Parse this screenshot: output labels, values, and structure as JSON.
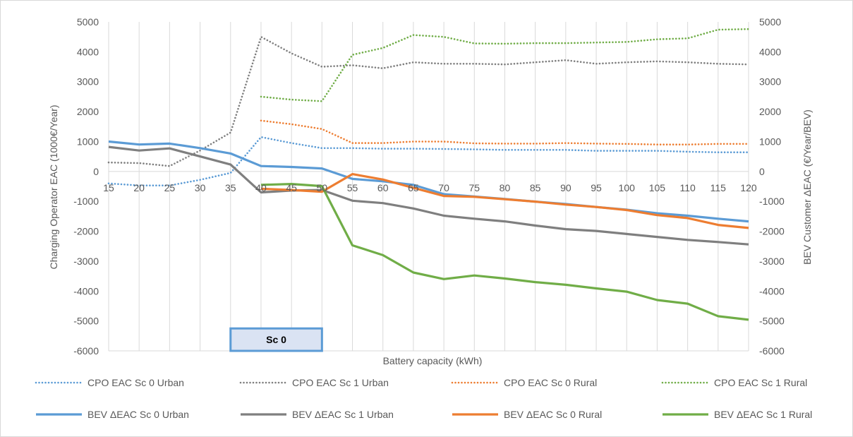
{
  "chart_data": {
    "type": "line",
    "xlabel": "Battery capacity (kWh)",
    "ylabel_left": "Charging Operator EAC (1000€/Year)",
    "ylabel_right": "BEV Customer ΔEAC (€/Year/BEV)",
    "xlim": [
      15,
      120
    ],
    "ylim_left": [
      -6000,
      5000
    ],
    "ylim_right": [
      -6000,
      5000
    ],
    "grid": "vertical",
    "legend_position": "bottom",
    "x": [
      15,
      20,
      25,
      30,
      35,
      40,
      45,
      50,
      55,
      60,
      65,
      70,
      75,
      80,
      85,
      90,
      95,
      100,
      105,
      110,
      115,
      120
    ],
    "x_tick_labels": [
      "15",
      "20",
      "25",
      "30",
      "35",
      "40",
      "45",
      "50",
      "55",
      "60",
      "65",
      "70",
      "75",
      "80",
      "85",
      "90",
      "95",
      "100",
      "105",
      "110",
      "115",
      "120"
    ],
    "y_tick_labels": [
      "5000",
      "4000",
      "3000",
      "2000",
      "1000",
      "0",
      "-1000",
      "-2000",
      "-3000",
      "-4000",
      "-5000",
      "-6000"
    ],
    "y_tick_values": [
      5000,
      4000,
      3000,
      2000,
      1000,
      0,
      -1000,
      -2000,
      -3000,
      -4000,
      -5000,
      -6000
    ],
    "series": [
      {
        "name": "CPO EAC Sc 0 Urban",
        "axis": "left",
        "style": "dotted",
        "color": "#5b9bd5",
        "values": [
          -400,
          -470,
          -470,
          -280,
          -50,
          1150,
          950,
          780,
          780,
          760,
          760,
          750,
          740,
          720,
          720,
          720,
          690,
          690,
          690,
          660,
          640,
          640
        ]
      },
      {
        "name": "CPO EAC Sc 1 Urban",
        "axis": "left",
        "style": "dotted",
        "color": "#7f7f7f",
        "values": [
          300,
          280,
          180,
          700,
          1300,
          4500,
          3950,
          3500,
          3550,
          3450,
          3650,
          3600,
          3600,
          3580,
          3650,
          3720,
          3600,
          3650,
          3680,
          3650,
          3600,
          3580
        ]
      },
      {
        "name": "CPO EAC Sc 0 Rural",
        "axis": "left",
        "style": "dotted",
        "color": "#ed7d31",
        "values": [
          null,
          null,
          null,
          null,
          null,
          1700,
          1580,
          1420,
          950,
          950,
          1000,
          1000,
          940,
          930,
          930,
          950,
          930,
          920,
          900,
          900,
          920,
          920
        ]
      },
      {
        "name": "CPO EAC Sc 1 Rural",
        "axis": "left",
        "style": "dotted",
        "color": "#70ad47",
        "values": [
          null,
          null,
          null,
          null,
          null,
          2500,
          2400,
          2350,
          3900,
          4130,
          4560,
          4500,
          4280,
          4270,
          4290,
          4290,
          4310,
          4330,
          4420,
          4450,
          4740,
          4760
        ]
      },
      {
        "name": "BEV ΔEAC Sc 0 Urban",
        "axis": "right",
        "style": "solid",
        "color": "#5b9bd5",
        "values": [
          1000,
          900,
          930,
          780,
          600,
          180,
          150,
          100,
          -250,
          -330,
          -450,
          -760,
          -840,
          -920,
          -1010,
          -1090,
          -1190,
          -1280,
          -1400,
          -1480,
          -1580,
          -1670
        ]
      },
      {
        "name": "BEV ΔEAC Sc 1 Urban",
        "axis": "right",
        "style": "solid",
        "color": "#7f7f7f",
        "values": [
          820,
          700,
          770,
          500,
          230,
          -700,
          -640,
          -620,
          -980,
          -1060,
          -1240,
          -1480,
          -1580,
          -1670,
          -1810,
          -1930,
          -1990,
          -2090,
          -2190,
          -2290,
          -2360,
          -2440
        ]
      },
      {
        "name": "BEV ΔEAC Sc 0 Rural",
        "axis": "right",
        "style": "solid",
        "color": "#ed7d31",
        "values": [
          null,
          null,
          null,
          null,
          null,
          -580,
          -620,
          -680,
          -90,
          -270,
          -550,
          -820,
          -850,
          -930,
          -1010,
          -1110,
          -1190,
          -1290,
          -1460,
          -1560,
          -1790,
          -1890
        ]
      },
      {
        "name": "BEV ΔEAC Sc 1 Rural",
        "axis": "right",
        "style": "solid",
        "color": "#70ad47",
        "values": [
          null,
          null,
          null,
          null,
          null,
          -450,
          -420,
          -490,
          -2470,
          -2800,
          -3380,
          -3600,
          -3480,
          -3580,
          -3700,
          -3790,
          -3910,
          -4020,
          -4300,
          -4420,
          -4840,
          -4960
        ]
      }
    ],
    "annotation": {
      "text": "Sc 0",
      "x_from": 35,
      "x_to": 50,
      "y_from": -5250,
      "y_to": -6000
    }
  }
}
